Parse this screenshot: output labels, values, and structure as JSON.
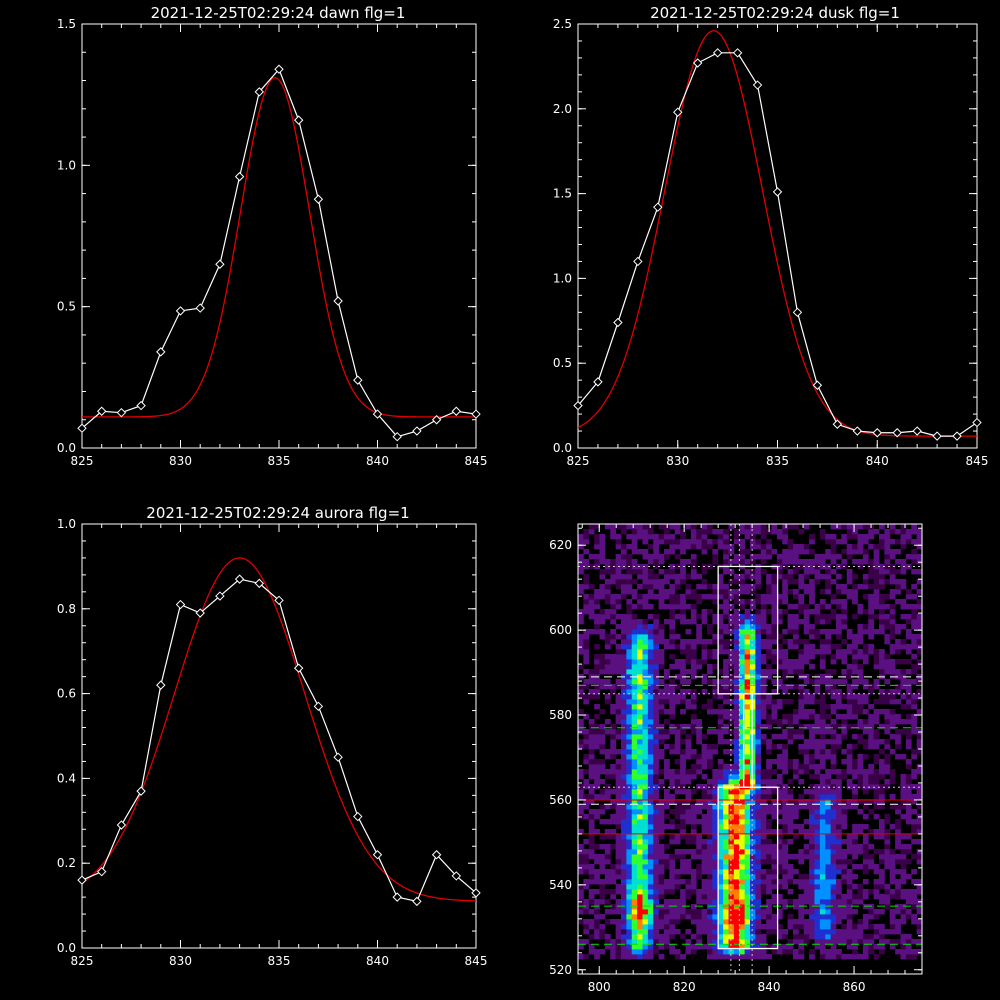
{
  "chart_data": [
    {
      "type": "line",
      "title": "2021-12-25T02:29:24 dawn flg=1",
      "xlim": [
        825,
        845
      ],
      "ylim": [
        0,
        1.5
      ],
      "xticks": [
        "825",
        "830",
        "835",
        "840",
        "845"
      ],
      "yticks": [
        "0.0",
        "0.5",
        "1.0",
        "1.5"
      ],
      "series": [
        {
          "kind": "data",
          "color": "#ffffff",
          "marker": "diamond",
          "x": [
            825,
            826,
            827,
            828,
            829,
            830,
            831,
            832,
            833,
            834,
            835,
            836,
            837,
            838,
            839,
            840,
            841,
            842,
            843,
            844,
            845
          ],
          "y": [
            0.07,
            0.13,
            0.125,
            0.15,
            0.34,
            0.485,
            0.495,
            0.65,
            0.96,
            1.26,
            1.34,
            1.16,
            0.88,
            0.52,
            0.24,
            0.12,
            0.04,
            0.06,
            0.1,
            0.13,
            0.12
          ]
        },
        {
          "kind": "fit",
          "color": "#e00000",
          "gauss": {
            "a": 1.2,
            "mu": 834.8,
            "sigma": 1.75,
            "b": 0.11
          }
        }
      ]
    },
    {
      "type": "line",
      "title": "2021-12-25T02:29:24 dusk flg=1",
      "xlim": [
        825,
        845
      ],
      "ylim": [
        0,
        2.5
      ],
      "xticks": [
        "825",
        "830",
        "835",
        "840",
        "845"
      ],
      "yticks": [
        "0.0",
        "0.5",
        "1.0",
        "1.5",
        "2.0",
        "2.5"
      ],
      "series": [
        {
          "kind": "data",
          "color": "#ffffff",
          "marker": "diamond",
          "x": [
            825,
            826,
            827,
            828,
            829,
            830,
            831,
            832,
            833,
            834,
            835,
            836,
            837,
            838,
            839,
            840,
            841,
            842,
            843,
            844,
            845
          ],
          "y": [
            0.25,
            0.39,
            0.74,
            1.1,
            1.42,
            1.98,
            2.27,
            2.33,
            2.33,
            2.14,
            1.51,
            0.8,
            0.37,
            0.14,
            0.1,
            0.09,
            0.09,
            0.1,
            0.07,
            0.07,
            0.15
          ]
        },
        {
          "kind": "fit",
          "color": "#e00000",
          "gauss": {
            "a": 2.39,
            "mu": 831.8,
            "sigma": 2.45,
            "b": 0.07
          }
        }
      ]
    },
    {
      "type": "line",
      "title": "2021-12-25T02:29:24 aurora flg=1",
      "xlim": [
        825,
        845
      ],
      "ylim": [
        0,
        1.0
      ],
      "xticks": [
        "825",
        "830",
        "835",
        "840",
        "845"
      ],
      "yticks": [
        "0.0",
        "0.2",
        "0.4",
        "0.6",
        "0.8",
        "1.0"
      ],
      "series": [
        {
          "kind": "data",
          "color": "#ffffff",
          "marker": "diamond",
          "x": [
            825,
            826,
            827,
            828,
            829,
            830,
            831,
            832,
            833,
            834,
            835,
            836,
            837,
            838,
            839,
            840,
            841,
            842,
            843,
            844,
            845
          ],
          "y": [
            0.16,
            0.18,
            0.29,
            0.37,
            0.62,
            0.81,
            0.79,
            0.83,
            0.87,
            0.86,
            0.82,
            0.66,
            0.57,
            0.45,
            0.31,
            0.22,
            0.12,
            0.11,
            0.22,
            0.17,
            0.13
          ]
        },
        {
          "kind": "fit",
          "color": "#e00000",
          "gauss": {
            "a": 0.81,
            "mu": 833.0,
            "sigma": 3.3,
            "b": 0.11
          }
        }
      ]
    },
    {
      "type": "heatmap",
      "title": "",
      "xlim": [
        795,
        876
      ],
      "ylim": [
        519,
        625
      ],
      "xticks": [
        "800",
        "820",
        "840",
        "860"
      ],
      "yticks": [
        "520",
        "540",
        "560",
        "580",
        "600",
        "620"
      ],
      "xtick_values": [
        800,
        820,
        840,
        860
      ],
      "ytick_values": [
        520,
        540,
        560,
        580,
        600,
        620
      ],
      "colormap": [
        "#000000",
        "#3a0048",
        "#5a1080",
        "#2030d0",
        "#0090ff",
        "#00e0d0",
        "#30ff30",
        "#e8ff00",
        "#ff8000",
        "#ff0000"
      ],
      "sources": [
        {
          "x": 809.5,
          "y_min": 525,
          "y_max": 598,
          "width": 2.0,
          "peak": 0.45,
          "bright_y": 534,
          "bright_peak": 0.8
        },
        {
          "x": 832.0,
          "y_min": 525,
          "y_max": 563,
          "width": 2.6,
          "peak": 0.75,
          "bright_y": 533,
          "bright_peak": 1.0
        },
        {
          "x": 835.0,
          "y_min": 563,
          "y_max": 600,
          "width": 1.4,
          "peak": 0.62,
          "bright_y": 586,
          "bright_peak": 0.72
        },
        {
          "x": 853.0,
          "y_min": 528,
          "y_max": 560,
          "width": 1.8,
          "peak": 0.25,
          "bright_y": 540,
          "bright_peak": 0.35
        }
      ],
      "boxes": [
        {
          "x0": 828,
          "x1": 842,
          "y0": 585,
          "y1": 615,
          "color": "#ffffff"
        },
        {
          "x0": 828,
          "x1": 842,
          "y0": 525,
          "y1": 563,
          "color": "#ffffff"
        }
      ],
      "strip": {
        "x0": 834,
        "x1": 836,
        "y0": 563,
        "y1": 585,
        "color": "#ffffff"
      },
      "hlines": [
        {
          "y": 615,
          "color": "#cccccc",
          "style": "dotted"
        },
        {
          "y": 589,
          "color": "#ffffff",
          "style": "dashed"
        },
        {
          "y": 587,
          "color": "#00e000",
          "style": "dashed"
        },
        {
          "y": 585,
          "color": "#cccccc",
          "style": "dotted"
        },
        {
          "y": 577,
          "color": "#00e000",
          "style": "dashed"
        },
        {
          "y": 563,
          "color": "#cccccc",
          "style": "dotted"
        },
        {
          "y": 560,
          "color": "#e00000",
          "style": "solid"
        },
        {
          "y": 559,
          "color": "#ffffff",
          "style": "dashed"
        },
        {
          "y": 552,
          "color": "#e00000",
          "style": "solid"
        },
        {
          "y": 535,
          "color": "#00e000",
          "style": "dashed"
        },
        {
          "y": 526,
          "color": "#00e000",
          "style": "dashed"
        }
      ],
      "vlines": [
        {
          "x": 831,
          "color": "#cccccc",
          "style": "dotted"
        },
        {
          "x": 833,
          "color": "#cccccc",
          "style": "dotted"
        },
        {
          "x": 836,
          "color": "#cccccc",
          "style": "dotted"
        }
      ]
    }
  ]
}
